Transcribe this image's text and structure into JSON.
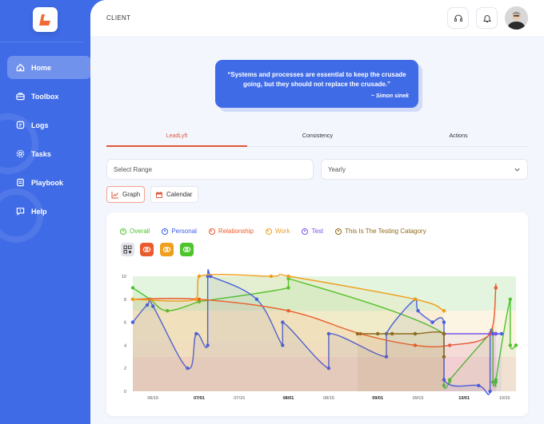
{
  "sidebar": {
    "items": [
      {
        "label": "Home",
        "icon": "home-icon",
        "active": true
      },
      {
        "label": "Toolbox",
        "icon": "toolbox-icon"
      },
      {
        "label": "Logs",
        "icon": "logs-icon"
      },
      {
        "label": "Tasks",
        "icon": "tasks-icon"
      },
      {
        "label": "Playbook",
        "icon": "playbook-icon"
      },
      {
        "label": "Help",
        "icon": "help-icon"
      }
    ]
  },
  "header": {
    "title": "CLIENT"
  },
  "quote": {
    "text": "“Systems and processes are essential to keep the crusade going, but they should not replace the crusade.”",
    "author": "~ Simon sinek"
  },
  "tabs": [
    {
      "label": "LeadLyft",
      "active": true
    },
    {
      "label": "Consistency"
    },
    {
      "label": "Actions"
    }
  ],
  "filters": {
    "range_placeholder": "Select Range",
    "period_value": "Yearly"
  },
  "view_buttons": {
    "graph": "Graph",
    "calendar": "Calendar"
  },
  "legend": [
    {
      "label": "Overall",
      "color": "#4cc42c"
    },
    {
      "label": "Personal",
      "color": "#3d5ee8"
    },
    {
      "label": "Relationship",
      "color": "#ea5a2d"
    },
    {
      "label": "Work",
      "color": "#ef9e1d"
    },
    {
      "label": "Test",
      "color": "#7a54e8"
    },
    {
      "label": "This Is The Testing Catagory",
      "color": "#8e6a1c"
    }
  ],
  "colors": {
    "accent": "#3f6be6",
    "active_tab": "#e0573a"
  },
  "chart_data": {
    "type": "line",
    "ylim": [
      0,
      10
    ],
    "y_ticks": [
      "0",
      "2",
      "4",
      "6",
      "8",
      "10"
    ],
    "x_ticks": [
      "06/15",
      "07/01",
      "07/15",
      "08/01",
      "08/15",
      "09/01",
      "09/15",
      "10/01",
      "10/15"
    ],
    "bands": [
      {
        "from": 0,
        "to": 3,
        "color": "#fde3df"
      },
      {
        "from": 3,
        "to": 4.3,
        "color": "#fef1e6"
      },
      {
        "from": 4.3,
        "to": 7,
        "color": "#fdf5e3"
      },
      {
        "from": 7,
        "to": 10,
        "color": "#e3f5de"
      }
    ],
    "series": [
      {
        "name": "Overall",
        "color": "#4cc42c",
        "x": [
          "06/08",
          "06/14",
          "06/20",
          "07/01",
          "07/01",
          "08/01",
          "08/01",
          "09/24",
          "09/24",
          "09/26",
          "09/26",
          "10/10",
          "10/11",
          "10/11",
          "10/12",
          "10/12",
          "10/17",
          "10/17",
          "10/19"
        ],
        "y": [
          9,
          8,
          7,
          7.8,
          7.8,
          9,
          9.8,
          5,
          0.5,
          0.9,
          1,
          5,
          5,
          0.8,
          0.8,
          1,
          8,
          4,
          4
        ]
      },
      {
        "name": "Personal",
        "color": "#3d5ee8",
        "x": [
          "06/08",
          "06/13",
          "06/15",
          "06/27",
          "06/30",
          "07/04",
          "07/04",
          "07/05",
          "07/21",
          "07/30",
          "07/30",
          "08/15",
          "08/15",
          "09/04",
          "09/04",
          "09/14",
          "09/15",
          "09/20",
          "09/20",
          "09/24",
          "09/24",
          "10/06",
          "10/10",
          "10/10",
          "10/11",
          "10/12",
          "10/12",
          "10/14"
        ],
        "y": [
          6,
          7.5,
          7.4,
          2,
          5,
          4,
          10,
          10,
          8,
          4,
          6,
          2,
          5,
          3,
          5,
          8,
          7,
          6,
          6,
          6,
          1,
          0.5,
          0,
          5,
          5,
          5,
          5,
          5
        ]
      },
      {
        "name": "Relationship",
        "color": "#ea5a2d",
        "x": [
          "06/08",
          "07/01",
          "08/01",
          "08/26",
          "09/14",
          "09/26",
          "10/10",
          "10/12",
          "10/12"
        ],
        "y": [
          8,
          8,
          7,
          5,
          4,
          4,
          5,
          9,
          9
        ]
      },
      {
        "name": "Work",
        "color": "#ef9e1d",
        "x": [
          "06/08",
          "06/30",
          "07/01",
          "07/26",
          "08/01",
          "09/14",
          "09/24",
          "09/24"
        ],
        "y": [
          8,
          8,
          10,
          10,
          10,
          8,
          7,
          7
        ]
      },
      {
        "name": "Test",
        "color": "#7a54e8",
        "x": [
          "09/24",
          "10/12"
        ],
        "y": [
          5,
          5
        ]
      },
      {
        "name": "This Is The Testing Catagory",
        "color": "#8e6a1c",
        "x": [
          "08/25",
          "09/01",
          "09/06",
          "09/14",
          "09/24",
          "09/24",
          "09/24"
        ],
        "y": [
          5,
          5,
          5,
          5,
          5,
          3,
          5
        ]
      }
    ]
  }
}
